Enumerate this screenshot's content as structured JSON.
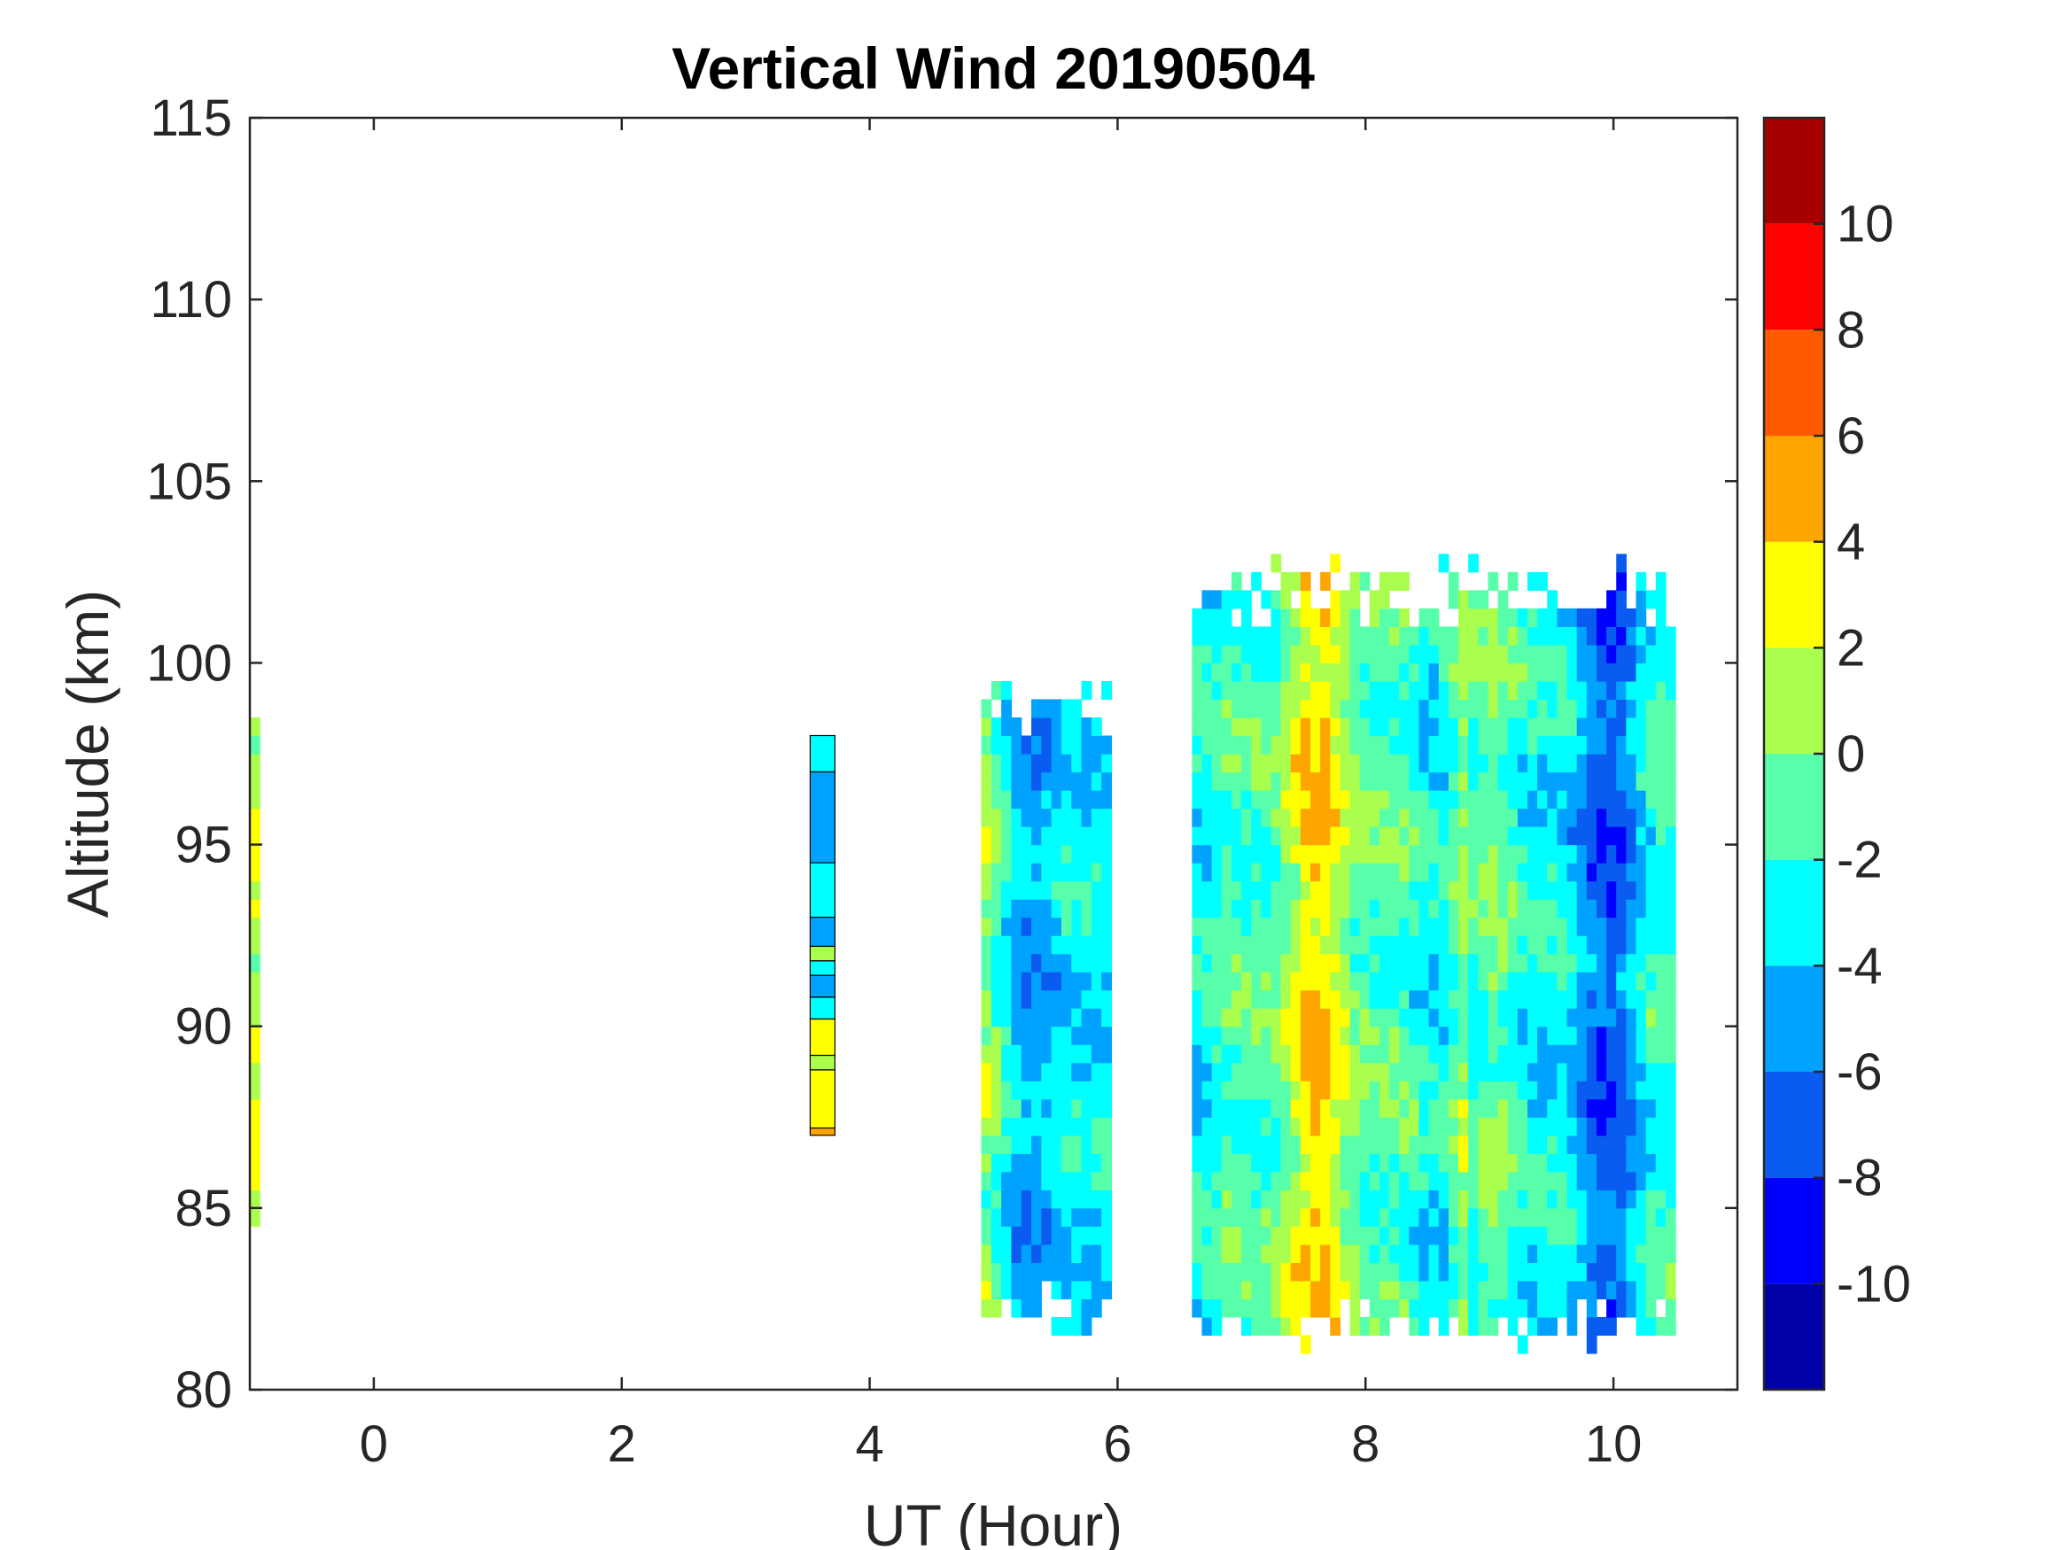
{
  "chart_data": {
    "type": "contour",
    "title": "Vertical Wind 20190504",
    "xlabel": "UT (Hour)",
    "ylabel": "Altitude (km)",
    "xlim": [
      -1,
      11
    ],
    "ylim": [
      80,
      115
    ],
    "xticks": [
      0,
      2,
      4,
      6,
      8,
      10
    ],
    "yticks": [
      80,
      85,
      90,
      95,
      100,
      105,
      110,
      115
    ],
    "colorbar": {
      "range": [
        -12,
        12
      ],
      "ticks": [
        -10,
        -8,
        -6,
        -4,
        -2,
        0,
        2,
        4,
        6,
        8,
        10
      ],
      "levels": [
        -12,
        -10,
        -8,
        -6,
        -4,
        -2,
        0,
        2,
        4,
        6,
        8,
        10,
        12
      ],
      "colors": [
        "#0000a8",
        "#0000ff",
        "#0a5cf0",
        "#00a2ff",
        "#00ffff",
        "#58ffaa",
        "#aaff4e",
        "#ffff00",
        "#ffa500",
        "#ff5a00",
        "#ff0000",
        "#a80000"
      ]
    },
    "segments": [
      {
        "ut_start": -1.0,
        "ut_end": -0.92,
        "alt_min": 84,
        "alt_max": 100
      },
      {
        "ut_start": 3.52,
        "ut_end": 3.72,
        "alt_min": 87,
        "alt_max": 98
      },
      {
        "ut_start": 4.9,
        "ut_end": 5.95,
        "alt_min": 81.5,
        "alt_max": 100
      },
      {
        "ut_start": 6.6,
        "ut_end": 10.5,
        "alt_min": 81,
        "alt_max": 103
      }
    ],
    "profile_3_6_UT": [
      {
        "alt_min": 97,
        "alt_max": 98,
        "wind": -3
      },
      {
        "alt_min": 94.5,
        "alt_max": 97,
        "wind": -5
      },
      {
        "alt_min": 93,
        "alt_max": 94.5,
        "wind": -3
      },
      {
        "alt_min": 92.2,
        "alt_max": 93,
        "wind": -5
      },
      {
        "alt_min": 91.8,
        "alt_max": 92.2,
        "wind": 1
      },
      {
        "alt_min": 91.4,
        "alt_max": 91.8,
        "wind": -3
      },
      {
        "alt_min": 90.8,
        "alt_max": 91.4,
        "wind": -5
      },
      {
        "alt_min": 90.2,
        "alt_max": 90.8,
        "wind": -3
      },
      {
        "alt_min": 89.2,
        "alt_max": 90.2,
        "wind": 3
      },
      {
        "alt_min": 88.8,
        "alt_max": 89.2,
        "wind": 1
      },
      {
        "alt_min": 87.2,
        "alt_max": 88.8,
        "wind": 3
      },
      {
        "alt_min": 87.0,
        "alt_max": 87.2,
        "wind": 5
      }
    ]
  }
}
